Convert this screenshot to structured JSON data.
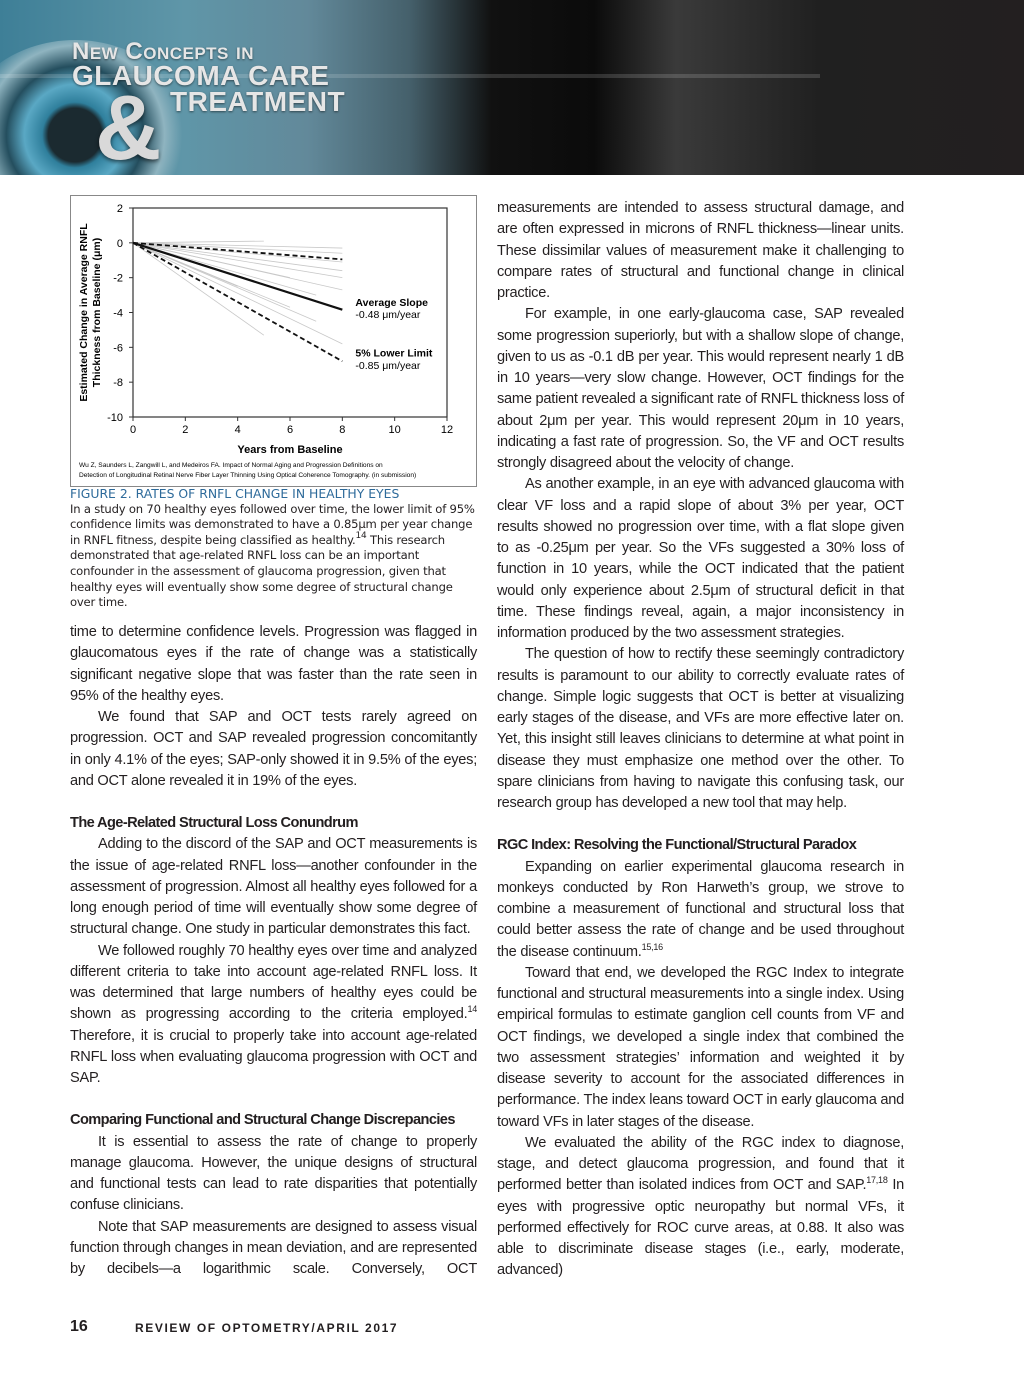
{
  "banner": {
    "line1": "New Concepts in",
    "line2": "GLAUCOMA CARE",
    "ampersand": "&",
    "line3": "TREATMENT"
  },
  "figure": {
    "caption_title": "FIGURE 2. RATES OF RNFL CHANGE IN HEALTHY EYES",
    "caption_text": "In a study on 70 healthy eyes followed over time, the lower limit of 95% confidence limits was demonstrated to have a 0.85μm per year change in RNFL fitness, despite being classified as healthy.",
    "caption_sup": "14",
    "caption_text2": " This research demonstrated that age-related RNFL loss can be an important confounder in the assessment of glaucoma progression, given that healthy eyes will eventually show some degree of structural change over time."
  },
  "chart_data": {
    "type": "line",
    "xlabel": "Years from Baseline",
    "ylabel_line1": "Estimated Change in Average RNFL",
    "ylabel_line2": "Thickness from Baseline (μm)",
    "xlim": [
      0,
      12
    ],
    "ylim": [
      -10,
      2
    ],
    "xticks": [
      "0",
      "2",
      "4",
      "6",
      "8",
      "10",
      "12"
    ],
    "yticks": [
      "2",
      "0",
      "-2",
      "-4",
      "-6",
      "-8",
      "-10"
    ],
    "grid": false,
    "series": [
      {
        "name": "Average Slope",
        "style": "solid",
        "points": [
          [
            0,
            0
          ],
          [
            8,
            -3.84
          ]
        ]
      },
      {
        "name": "5% Lower Limit",
        "style": "dashed",
        "points": [
          [
            0,
            0
          ],
          [
            8,
            -6.8
          ]
        ]
      },
      {
        "style": "dashed",
        "points": [
          [
            0,
            0
          ],
          [
            8,
            -0.95
          ]
        ]
      }
    ],
    "individual_eyes": [
      [
        5,
        0.1
      ],
      [
        8,
        -0.3
      ],
      [
        8,
        -0.6
      ],
      [
        8,
        -1.1
      ],
      [
        8,
        -1.6
      ],
      [
        8,
        -2.0
      ],
      [
        8,
        -2.7
      ],
      [
        6,
        -2.0
      ],
      [
        7,
        -3.0
      ],
      [
        6,
        -3.7
      ],
      [
        4,
        -2.5
      ],
      [
        7,
        -4.5
      ],
      [
        8,
        -5.8
      ],
      [
        5,
        -5.3
      ]
    ],
    "annotations": [
      {
        "label": "Average Slope",
        "value": "-0.48 μm/year"
      },
      {
        "label": "5% Lower Limit",
        "value": "-0.85 μm/year"
      }
    ],
    "source_line1": "Wu Z, Saunders L, Zangwill L, and Medeiros FA. Impact of Normal Aging and Progression Definitions on",
    "source_line2": "Detection of Longitudinal Retinal Nerve Fiber Layer Thinning Using Optical Coherence Tomography. (in submission)",
    "colors": {
      "main": "#111111",
      "individual": "#c8c8c8"
    }
  },
  "left_column": [
    {
      "type": "p",
      "cls": "noind",
      "segs": [
        {
          "t": "time to determine confidence levels. Progression was flagged in glaucomatous eyes if the rate of change was a statistically significant negative slope that was faster than the rate seen in 95% of the healthy eyes."
        }
      ]
    },
    {
      "type": "p",
      "segs": [
        {
          "t": "We found that SAP and OCT tests rarely agreed on progression. OCT and SAP revealed progression concomitantly in only 4.1% of the eyes; SAP-only showed it in 9.5% of the eyes; and OCT alone revealed it in 19% of the eyes."
        }
      ]
    },
    {
      "type": "h",
      "text": "The Age-Related Structural Loss Conundrum"
    },
    {
      "type": "p",
      "segs": [
        {
          "t": "Adding to the discord of the SAP and OCT measurements is the issue of age-related RNFL loss—another confounder in the assessment of progression. Almost all healthy eyes followed for a long enough period of time will eventually show some degree of structural change. One study in particular demonstrates this fact."
        }
      ]
    },
    {
      "type": "p",
      "segs": [
        {
          "t": "We followed roughly 70 healthy eyes over time and analyzed different criteria to take into account age-related RNFL loss. It was determined that large numbers of healthy eyes could be shown as progressing according to the criteria employed."
        },
        {
          "sup": "14"
        },
        {
          "t": " Therefore, it is crucial to properly take into account age-related RNFL loss when evaluating glaucoma progression with OCT and SAP."
        }
      ]
    },
    {
      "type": "h",
      "text": "Comparing Functional and Structural Change Discrepancies"
    },
    {
      "type": "p",
      "segs": [
        {
          "t": "It is essential to assess the rate of change to properly manage glaucoma. However, the unique designs of structural and functional tests can lead to rate disparities that potentially confuse clinicians."
        }
      ]
    },
    {
      "type": "p",
      "cls": "last",
      "segs": [
        {
          "t": "Note that SAP measurements are designed to assess visual function through changes in mean deviation, and are represented by decibels—a logarithmic scale. Conversely, OCT"
        }
      ]
    }
  ],
  "right_column": [
    {
      "type": "p",
      "cls": "noind",
      "segs": [
        {
          "t": "measurements are intended to assess structural damage, and are often expressed in microns of RNFL thickness—linear units. These dissimilar values of measurement make it challenging to compare rates of structural and functional change in clinical practice."
        }
      ]
    },
    {
      "type": "p",
      "segs": [
        {
          "t": "For example, in one early-glaucoma case, SAP revealed some progression superiorly, but with a shallow slope of change, given to us as -0.1 dB per year. This would represent nearly 1 dB in 10 years—very slow change. However, OCT findings for the same patient revealed a significant rate of RNFL thickness loss of about 2μm per year. This would represent 20μm in 10 years, indicating a fast rate of progression. So, the VF and OCT results strongly disagreed about the velocity of change."
        }
      ]
    },
    {
      "type": "p",
      "segs": [
        {
          "t": "As another example, in an eye with advanced glaucoma with clear VF loss and a rapid slope of about 3% per year, OCT results showed no progression over time, with a flat slope given to as -0.25μm per year. So the VFs suggested a 30% loss of function in 10 years, while the OCT indicated that the patient would only experience about 2.5μm of structural deficit in that time. These findings reveal, again, a major inconsistency in information produced by the two assessment strategies."
        }
      ]
    },
    {
      "type": "p",
      "segs": [
        {
          "t": "The question of how to rectify these seemingly contradictory results is paramount to our ability to correctly evaluate rates of change. Simple logic suggests that OCT is better at visualizing early stages of the disease, and VFs are more effective later on. Yet, this insight still leaves clinicians to determine at what point in disease they must emphasize one method over the other. To spare clinicians from having to navigate this confusing task, our research group has developed a new tool that may help."
        }
      ]
    },
    {
      "type": "h",
      "text": "RGC Index: Resolving the Functional/Structural Paradox"
    },
    {
      "type": "p",
      "segs": [
        {
          "t": "Expanding on earlier experimental glaucoma research in monkeys conducted by Ron Harweth’s group, we strove to combine a measurement of functional and structural loss that could better assess the rate of change and be used throughout the disease continuum."
        },
        {
          "sup": "15,16"
        }
      ]
    },
    {
      "type": "p",
      "segs": [
        {
          "t": "Toward that end, we developed the RGC Index to integrate functional and structural measurements into a single index. Using empirical formulas to estimate ganglion cell counts from VF and OCT findings, we developed a single index that combined the two assessment strategies’ information and weighted it by disease severity to account for the associated differences in performance. The index leans toward OCT in early glaucoma and toward VFs in later stages of the disease."
        }
      ]
    },
    {
      "type": "p",
      "cls": "last",
      "segs": [
        {
          "t": "We evaluated the ability of the RGC index to diagnose, stage, and detect glaucoma progression, and found that it performed better than isolated indices from OCT and SAP."
        },
        {
          "sup": "17,18"
        },
        {
          "t": " In eyes with progressive optic neuropathy but normal VFs, it performed effectively for ROC curve areas, at 0.88. It also was able to discriminate disease stages (i.e., early, moderate, advanced)"
        }
      ]
    }
  ],
  "footer": {
    "page_number": "16",
    "publication": "REVIEW OF OPTOMETRY/APRIL 2017"
  }
}
